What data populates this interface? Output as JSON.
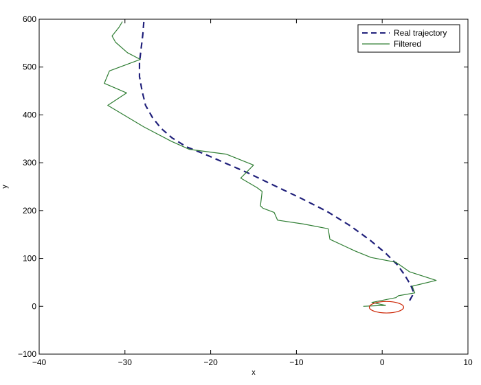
{
  "chart_data": {
    "type": "line",
    "title": "",
    "xlabel": "x",
    "ylabel": "y",
    "xlim": [
      -40,
      10
    ],
    "ylim": [
      -100,
      600
    ],
    "x_ticks": [
      -40,
      -30,
      -20,
      -10,
      0,
      10
    ],
    "y_ticks": [
      -100,
      0,
      100,
      200,
      300,
      400,
      500,
      600
    ],
    "x_tick_labels": [
      "−40",
      "−30",
      "−20",
      "−10",
      "0",
      "10"
    ],
    "y_tick_labels": [
      "−100",
      "0",
      "100",
      "200",
      "300",
      "400",
      "500",
      "600"
    ],
    "grid": false,
    "legend_position": "top-right",
    "series": [
      {
        "name": "Real trajectory",
        "color": "#1f1f7a",
        "style": "dashed",
        "points": [
          [
            3.2,
            12
          ],
          [
            3.7,
            28
          ],
          [
            3.3,
            45
          ],
          [
            2.6,
            66
          ],
          [
            1.8,
            86
          ],
          [
            0.4,
            111
          ],
          [
            -1.4,
            138
          ],
          [
            -3.7,
            168
          ],
          [
            -6.4,
            198
          ],
          [
            -9.5,
            226
          ],
          [
            -12.9,
            255
          ],
          [
            -15.8,
            280
          ],
          [
            -18.4,
            300
          ],
          [
            -20.7,
            318
          ],
          [
            -22.8,
            333
          ],
          [
            -24.5,
            352
          ],
          [
            -25.8,
            372
          ],
          [
            -26.8,
            395
          ],
          [
            -27.6,
            420
          ],
          [
            -28.0,
            450
          ],
          [
            -28.3,
            480
          ],
          [
            -28.3,
            510
          ],
          [
            -28.1,
            540
          ],
          [
            -27.9,
            570
          ],
          [
            -27.8,
            595
          ]
        ]
      },
      {
        "name": "Filtered",
        "color": "#2e7d32",
        "style": "solid",
        "points": [
          [
            -2.2,
            0
          ],
          [
            0.4,
            2
          ],
          [
            -1.2,
            8
          ],
          [
            1.6,
            18
          ],
          [
            1.9,
            22
          ],
          [
            3.8,
            28
          ],
          [
            3.5,
            42
          ],
          [
            6.3,
            54
          ],
          [
            3.2,
            72
          ],
          [
            1.6,
            92
          ],
          [
            -1.3,
            102
          ],
          [
            -3.1,
            115
          ],
          [
            -6.1,
            140
          ],
          [
            -6.3,
            162
          ],
          [
            -9.2,
            172
          ],
          [
            -12.2,
            180
          ],
          [
            -12.6,
            196
          ],
          [
            -13.9,
            205
          ],
          [
            -14.2,
            210
          ],
          [
            -14.0,
            240
          ],
          [
            -14.6,
            248
          ],
          [
            -16.5,
            268
          ],
          [
            -15.0,
            295
          ],
          [
            -18.2,
            318
          ],
          [
            -22.5,
            328
          ],
          [
            -24.6,
            345
          ],
          [
            -27.8,
            375
          ],
          [
            -32.0,
            420
          ],
          [
            -29.8,
            446
          ],
          [
            -32.4,
            466
          ],
          [
            -31.8,
            492
          ],
          [
            -28.2,
            516
          ],
          [
            -29.7,
            530
          ],
          [
            -31.1,
            552
          ],
          [
            -31.5,
            565
          ],
          [
            -30.7,
            583
          ],
          [
            -30.3,
            595
          ]
        ]
      },
      {
        "name": "",
        "color": "#cc2200",
        "style": "solid",
        "shape": "circle",
        "center": [
          0.5,
          -2
        ],
        "radius": [
          2.0,
          12
        ]
      }
    ]
  }
}
